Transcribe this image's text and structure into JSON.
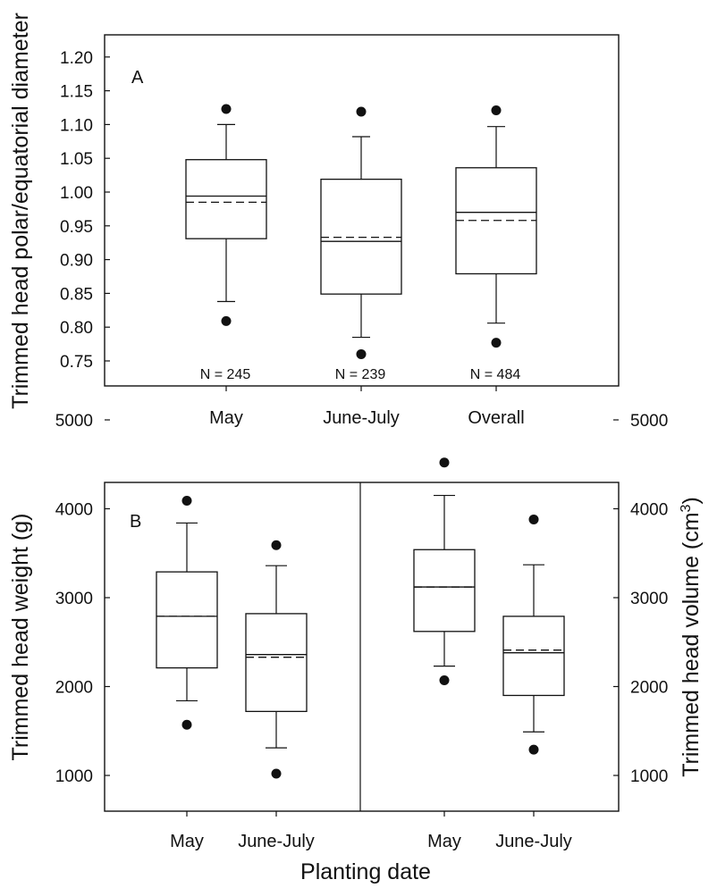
{
  "chart_data": [
    {
      "type": "boxplot",
      "panel_label": "A",
      "ylabel": "Trimmed head polar/equatorial diameter",
      "ylim": [
        0.72,
        1.24
      ],
      "yticks": [
        "0.75",
        "0.80",
        "0.85",
        "0.90",
        "0.95",
        "1.00",
        "1.05",
        "1.10",
        "1.15",
        "1.20"
      ],
      "categories": [
        "May",
        "June-July",
        "Overall"
      ],
      "boxes": [
        {
          "category": "May",
          "n_label": "N = 245",
          "q1": 0.931,
          "median": 0.994,
          "mean": 0.985,
          "q3": 1.048,
          "whisker_low": 0.838,
          "whisker_high": 1.1,
          "outlier_low": 0.809,
          "outlier_high": 1.123
        },
        {
          "category": "June-July",
          "n_label": "N = 239",
          "q1": 0.849,
          "median": 0.927,
          "mean": 0.933,
          "q3": 1.019,
          "whisker_low": 0.785,
          "whisker_high": 1.082,
          "outlier_low": 0.76,
          "outlier_high": 1.119
        },
        {
          "category": "Overall",
          "n_label": "N = 484",
          "q1": 0.879,
          "median": 0.97,
          "mean": 0.958,
          "q3": 1.036,
          "whisker_low": 0.806,
          "whisker_high": 1.097,
          "outlier_low": 0.777,
          "outlier_high": 1.121
        }
      ]
    },
    {
      "type": "boxplot",
      "panel_label": "B",
      "xlabel": "Planting date",
      "subplots": [
        {
          "ylabel": "Trimmed head weight (g)",
          "ylim": [
            500,
            5500
          ],
          "yticks": [
            "1000",
            "2000",
            "3000",
            "4000",
            "5000"
          ],
          "categories": [
            "May",
            "June-July"
          ],
          "boxes": [
            {
              "category": "May",
              "q1": 2210,
              "median": 2790,
              "mean": 2790,
              "q3": 3290,
              "whisker_low": 1840,
              "whisker_high": 3840,
              "outlier_low": 1570,
              "outlier_high": 4090
            },
            {
              "category": "June-July",
              "q1": 1720,
              "median": 2360,
              "mean": 2330,
              "q3": 2820,
              "whisker_low": 1310,
              "whisker_high": 3360,
              "outlier_low": 1020,
              "outlier_high": 3590
            }
          ]
        },
        {
          "ylabel_prefix": "Trimmed head volume (cm",
          "ylabel_sup": "3",
          "ylabel_suffix": ")",
          "ylim": [
            500,
            5500
          ],
          "yticks": [
            "1000",
            "2000",
            "3000",
            "4000",
            "5000"
          ],
          "categories": [
            "May",
            "June-July"
          ],
          "boxes": [
            {
              "category": "May",
              "q1": 2620,
              "median": 3120,
              "mean": 3120,
              "q3": 3540,
              "whisker_low": 2230,
              "whisker_high": 4150,
              "outlier_low": 2070,
              "outlier_high": 4520
            },
            {
              "category": "June-July",
              "q1": 1900,
              "median": 2380,
              "mean": 2410,
              "q3": 2790,
              "whisker_low": 1490,
              "whisker_high": 3370,
              "outlier_low": 1290,
              "outlier_high": 3880
            }
          ]
        }
      ]
    }
  ]
}
